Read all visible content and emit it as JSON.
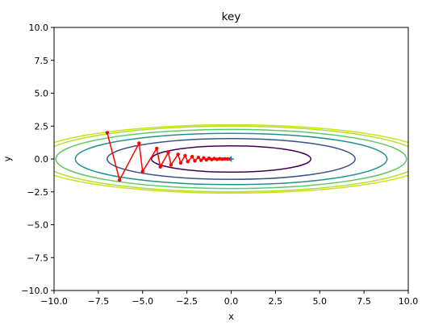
{
  "chart_data": {
    "type": "line",
    "title": "key",
    "xlabel": "x",
    "ylabel": "y",
    "xlim": [
      -10,
      10
    ],
    "ylim": [
      -10,
      10
    ],
    "xticks": [
      -10,
      -7.5,
      -5,
      -2.5,
      0,
      2.5,
      5,
      7.5,
      10
    ],
    "yticks": [
      -10,
      -7.5,
      -5,
      -2.5,
      0,
      2.5,
      5,
      7.5,
      10
    ],
    "xtick_labels": [
      "−10.0",
      "−7.5",
      "−5.0",
      "−2.5",
      "0.0",
      "2.5",
      "5.0",
      "7.5",
      "10.0"
    ],
    "ytick_labels": [
      "−10.0",
      "−7.5",
      "−5.0",
      "−2.5",
      "0.0",
      "2.5",
      "5.0",
      "7.5",
      "10.0"
    ],
    "grid": false,
    "contour": {
      "function": "x^2/20 + y^2",
      "colors": [
        "#440154",
        "#3b528b",
        "#21918c",
        "#5ec962",
        "#b5de2b",
        "#cde11d"
      ],
      "ellipses": [
        {
          "a": 4.5,
          "b": 1.0
        },
        {
          "a": 7.0,
          "b": 1.55
        },
        {
          "a": 8.8,
          "b": 1.95
        },
        {
          "a": 9.9,
          "b": 2.25
        },
        {
          "a": 10.8,
          "b": 2.5
        },
        {
          "a": 11.4,
          "b": 2.6
        }
      ]
    },
    "series": [
      {
        "color": "#ff0000",
        "marker": "o",
        "points": [
          [
            -7.0,
            2.0
          ],
          [
            -6.3,
            -1.6
          ],
          [
            -5.2,
            1.2
          ],
          [
            -5.0,
            -0.95
          ],
          [
            -4.2,
            0.8
          ],
          [
            -4.0,
            -0.6
          ],
          [
            -3.55,
            0.5
          ],
          [
            -3.4,
            -0.45
          ],
          [
            -3.0,
            0.35
          ],
          [
            -2.85,
            -0.3
          ],
          [
            -2.6,
            0.25
          ],
          [
            -2.45,
            -0.2
          ],
          [
            -2.2,
            0.18
          ],
          [
            -2.05,
            -0.14
          ],
          [
            -1.85,
            0.12
          ],
          [
            -1.7,
            -0.1
          ],
          [
            -1.55,
            0.08
          ],
          [
            -1.4,
            -0.07
          ],
          [
            -1.25,
            0.05
          ],
          [
            -1.1,
            -0.04
          ],
          [
            -0.95,
            0.03
          ],
          [
            -0.8,
            -0.03
          ],
          [
            -0.65,
            0.02
          ],
          [
            -0.5,
            -0.01
          ],
          [
            -0.35,
            0.01
          ],
          [
            -0.2,
            0.0
          ],
          [
            -0.05,
            0.0
          ]
        ]
      }
    ],
    "minimum_marker": {
      "x": 0,
      "y": 0,
      "marker": "+",
      "color": "#1f77b4"
    }
  }
}
